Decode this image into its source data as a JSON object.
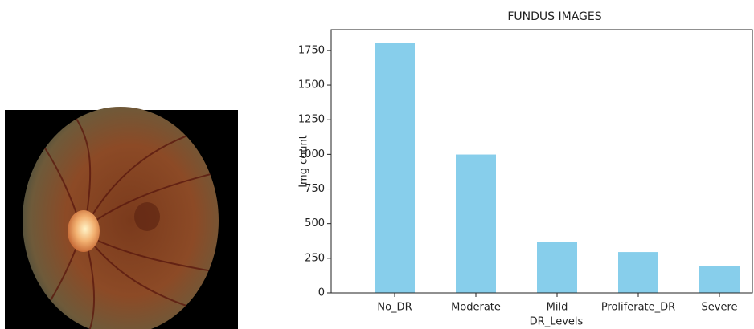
{
  "chart_data": {
    "type": "bar",
    "title": "FUNDUS IMAGES",
    "x_label": "DR_Levels",
    "y_label": "Img count",
    "categories": [
      "No_DR",
      "Moderate",
      "Mild",
      "Proliferate_DR",
      "Severe"
    ],
    "values": [
      1805,
      999,
      370,
      295,
      193
    ],
    "color": "#87ceeb",
    "ylim": [
      0,
      1900
    ],
    "yticks": [
      0,
      250,
      500,
      750,
      1000,
      1250,
      1500,
      1750
    ],
    "grid": false
  }
}
